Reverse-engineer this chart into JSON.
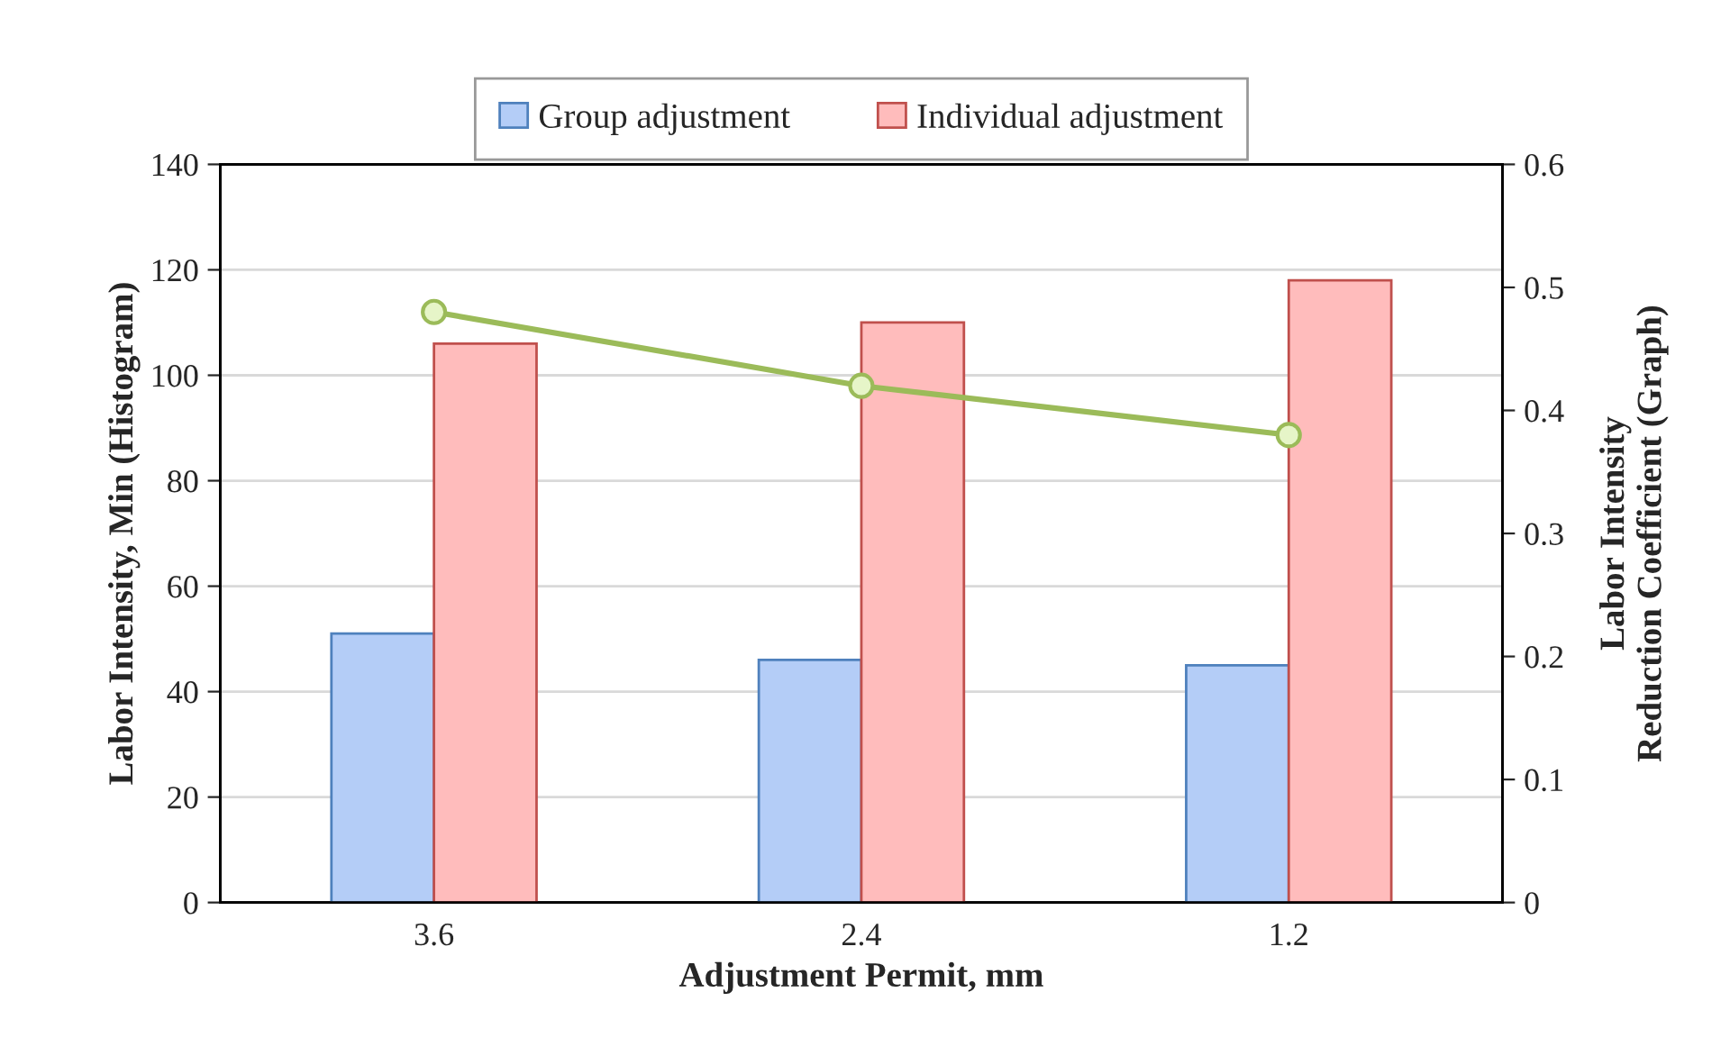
{
  "chart_data": {
    "type": "bar",
    "xlabel": "Adjustment Permit, mm",
    "ylabel": "Labor Intensity, Min (Histogram)",
    "y2label": "Labor Intensity\nReduction Coefficient (Graph)",
    "categories": [
      "3.6",
      "2.4",
      "1.2"
    ],
    "series": [
      {
        "name": "Group adjustment",
        "color": "#b4cdf7",
        "values": [
          51,
          46,
          45
        ]
      },
      {
        "name": "Individual adjustment",
        "color": "#ffbcbc",
        "values": [
          106,
          110,
          118
        ]
      },
      {
        "type": "line",
        "axis": "y2",
        "color": "#9bbb59",
        "values": [
          0.48,
          0.42,
          0.38
        ],
        "marker": "circle"
      }
    ],
    "ylim": [
      0,
      140
    ],
    "yticks": [
      0,
      20,
      40,
      60,
      80,
      100,
      120,
      140
    ],
    "y2lim": [
      0,
      0.6
    ],
    "y2ticks": [
      0,
      0.1,
      0.2,
      0.3,
      0.4,
      0.5,
      0.6
    ],
    "grid": "y",
    "legend": "top"
  }
}
